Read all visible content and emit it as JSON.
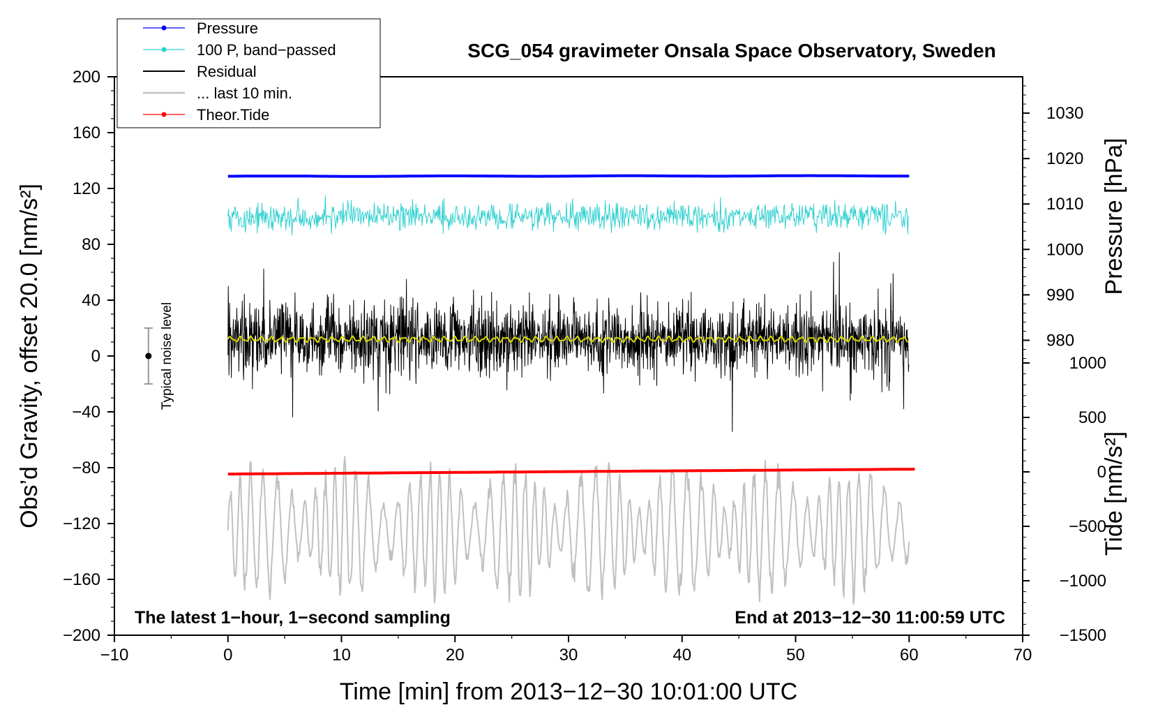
{
  "chart_data": {
    "type": "line",
    "title": "SCG_054 gravimeter Onsala Space Observatory, Sweden",
    "xlabel": "Time [min] from 2013−12−30 10:01:00 UTC",
    "ylabel": "Obs’d Gravity, offset 20.0 [nm/s²]",
    "ylabel_right_top": "Pressure [hPa]",
    "ylabel_right_bottom": "Tide [nm/s²]",
    "xlim": [
      -10,
      70
    ],
    "ylim": [
      -200,
      200
    ],
    "pressure_axis_range": [
      975,
      1038
    ],
    "tide_axis_range": [
      -1500,
      1000
    ],
    "x_ticks": [
      "−10",
      "0",
      "10",
      "20",
      "30",
      "40",
      "50",
      "60",
      "70"
    ],
    "y_ticks": [
      "200",
      "160",
      "120",
      "80",
      "40",
      "0",
      "−40",
      "−80",
      "−120",
      "−160",
      "−200"
    ],
    "pressure_ticks": [
      "1030",
      "1020",
      "1010",
      "1000",
      "990",
      "980"
    ],
    "tide_ticks": [
      "1000",
      "500",
      "0",
      "−500",
      "−1000",
      "−1500"
    ],
    "annotation_left": "The latest 1−hour, 1−second sampling",
    "annotation_right": "End at 2013−12−30 11:00:59 UTC",
    "noise_label": "Typical noise level",
    "noise_bar": {
      "x": -7,
      "center": 0,
      "half_range": 20
    },
    "legend": {
      "position": "top-left",
      "entries": [
        {
          "label": "Pressure",
          "color": "#0000ff",
          "marker": true
        },
        {
          "label": "100 P, band−passed",
          "color": "#30d0d0",
          "marker": true
        },
        {
          "label": "Residual",
          "color": "#000000",
          "marker": false
        },
        {
          "label": "... last 10 min.",
          "color": "#c0c0c0",
          "marker": false
        },
        {
          "label": "Theor.Tide",
          "color": "#ff0000",
          "marker": true
        }
      ]
    },
    "series": [
      {
        "name": "Pressure",
        "color": "#0000ff",
        "axis": "pressure",
        "x": [
          0,
          60
        ],
        "values": [
          1016.1,
          1016.2
        ]
      },
      {
        "name": "100 P, band−passed",
        "color": "#30d0d0",
        "axis": "left",
        "x_start": 0,
        "x_end": 60,
        "center": 100,
        "amplitude_gravity": 9
      },
      {
        "name": "Residual",
        "color": "#000000",
        "axis": "left",
        "x_start": 0,
        "x_end": 60,
        "center": 12,
        "amplitude_gravity": 30
      },
      {
        "name": "Residual smoothed",
        "color": "#d8d800",
        "axis": "left",
        "x_start": 0,
        "x_end": 60,
        "center": 12,
        "amplitude_gravity": 1.5
      },
      {
        "name": "... last 10 min.",
        "color": "#c0c0c0",
        "axis": "left",
        "x_start": 0,
        "x_end": 60,
        "center": -125,
        "amplitude_gravity": 45
      },
      {
        "name": "Theor.Tide",
        "color": "#ff0000",
        "axis": "tide",
        "x": [
          0,
          60.5
        ],
        "values": [
          -20,
          25
        ]
      }
    ]
  }
}
